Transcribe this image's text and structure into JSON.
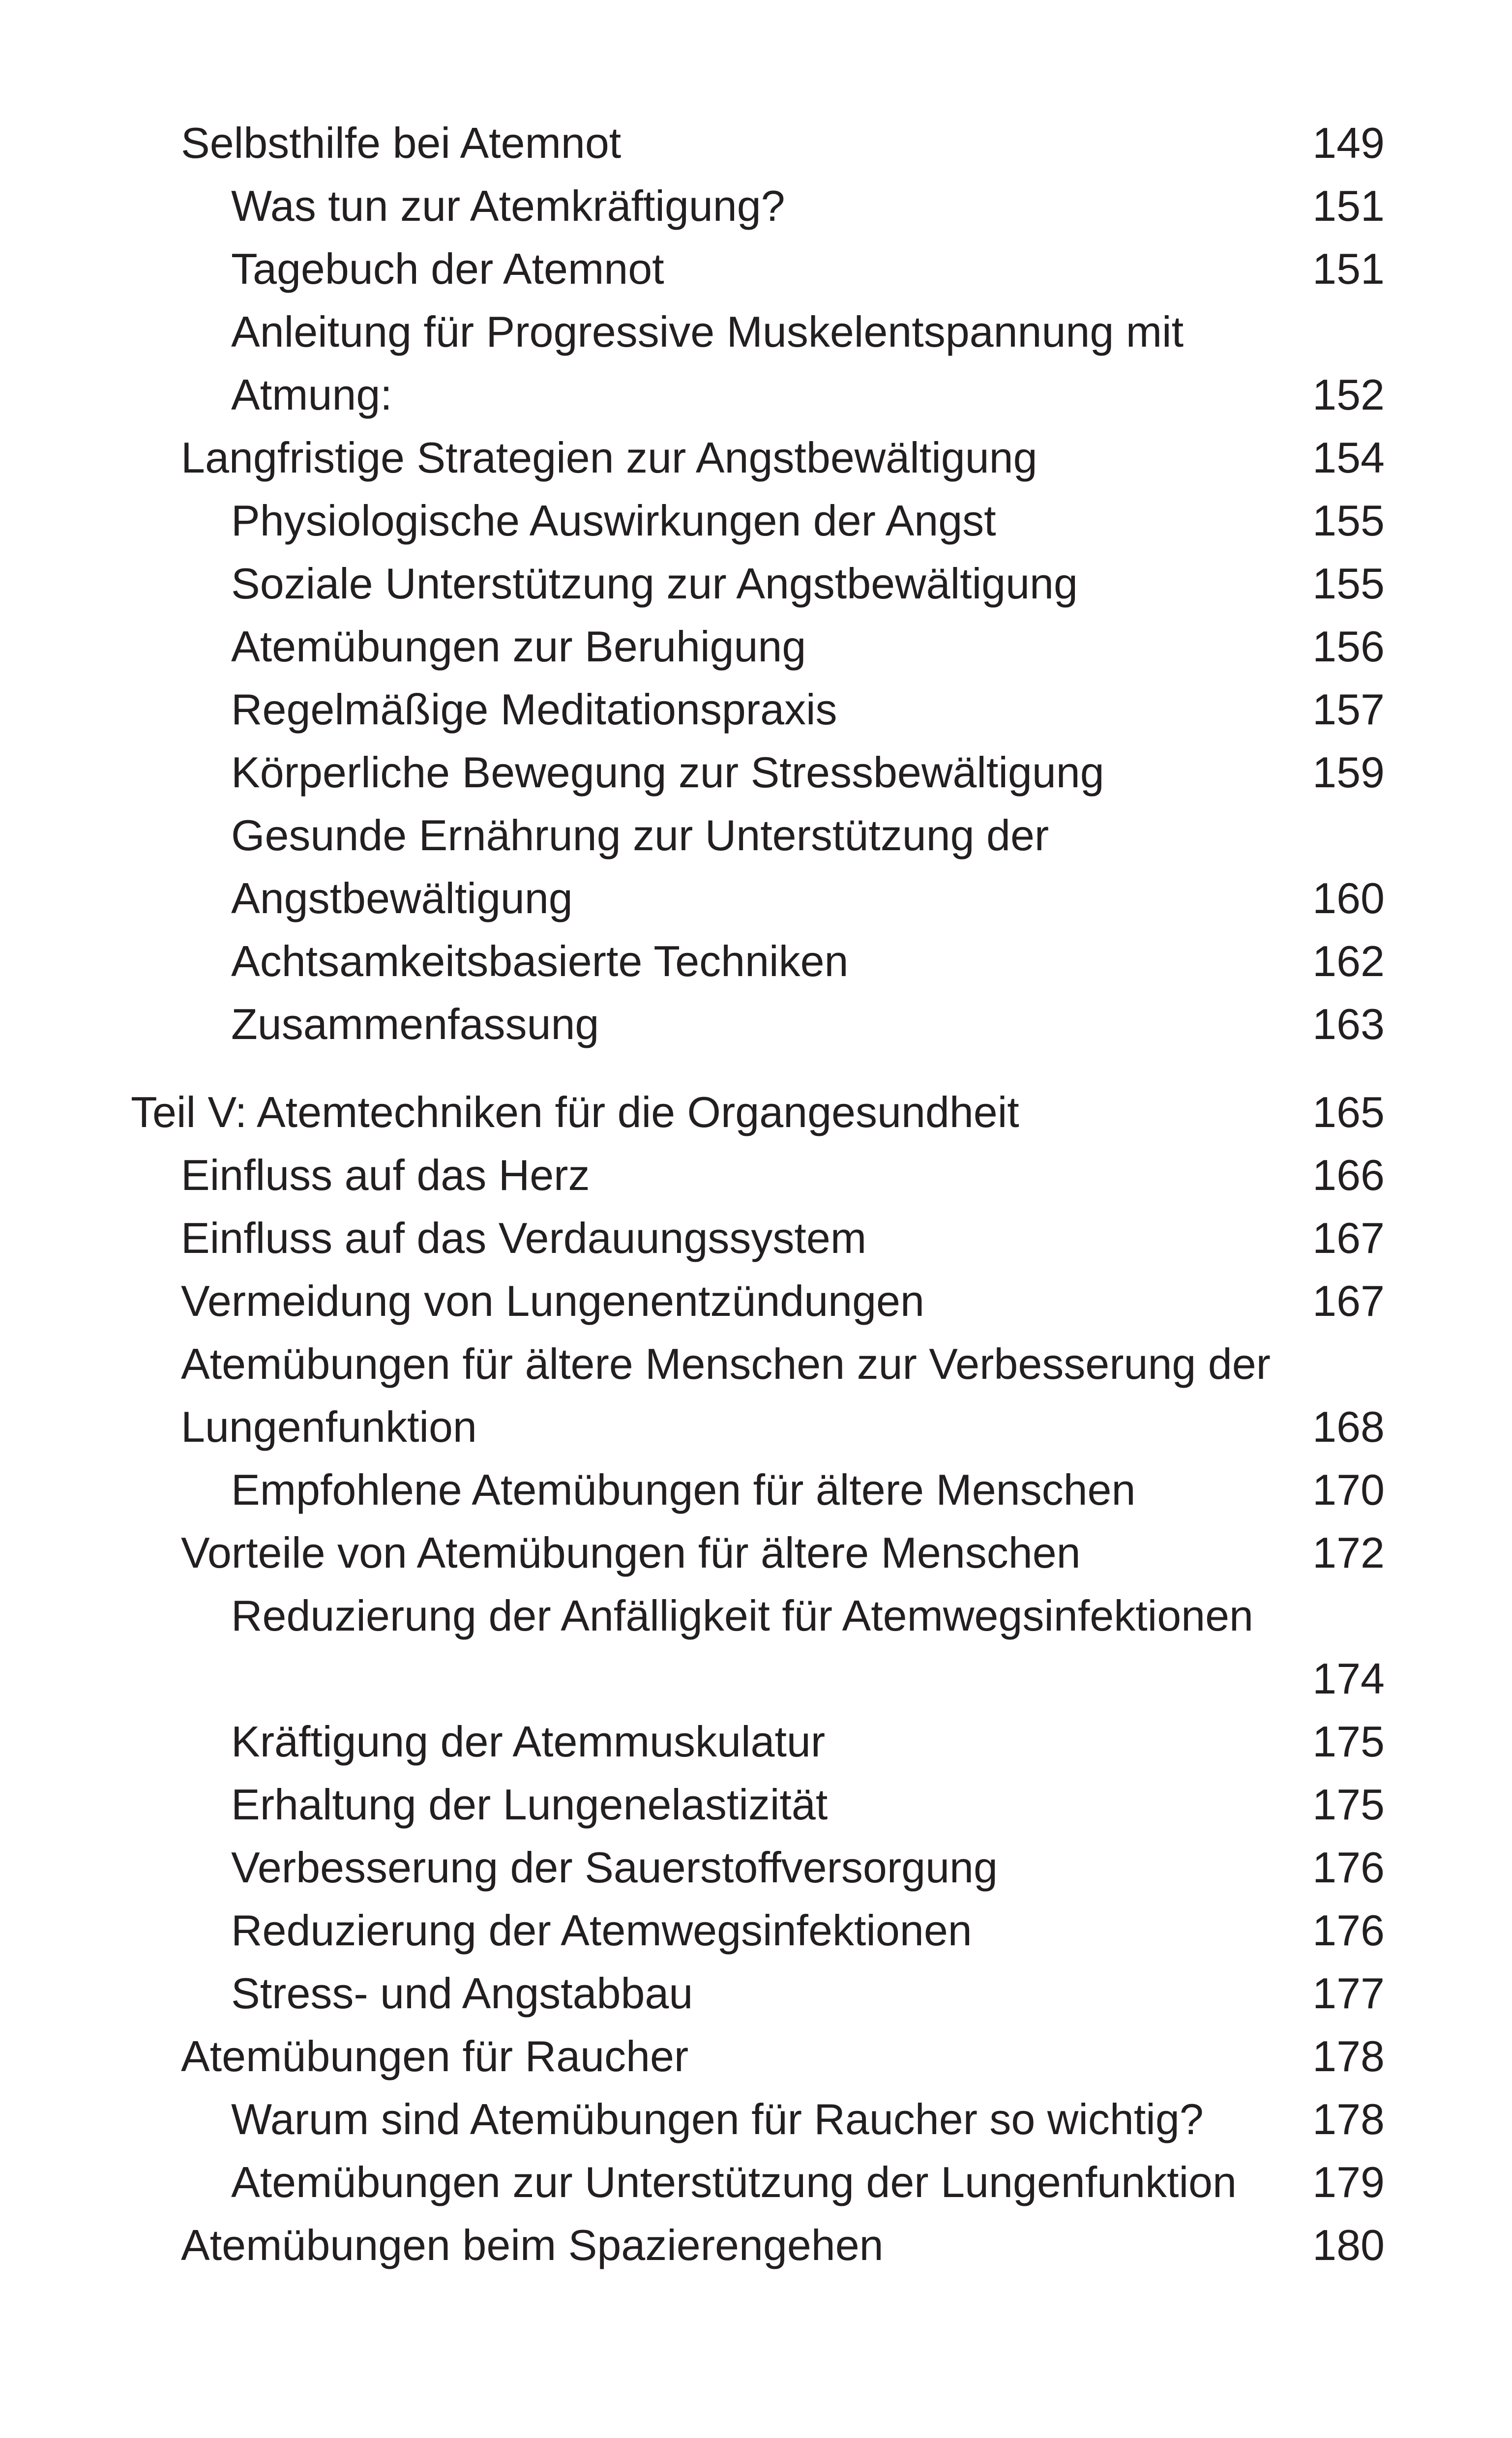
{
  "toc": [
    {
      "text": "Selbsthilfe bei Atemnot",
      "page": "149",
      "level": 1
    },
    {
      "text": "Was tun zur Atemkräftigung?",
      "page": "151",
      "level": 2
    },
    {
      "text": "Tagebuch der Atemnot",
      "page": "151",
      "level": 2
    },
    {
      "text": "Anleitung für Progressive Muskelentspannung mit",
      "page": "",
      "level": 2
    },
    {
      "text": "Atmung:",
      "page": "152",
      "level": 2
    },
    {
      "text": "Langfristige Strategien zur Angstbewältigung",
      "page": "154",
      "level": 1
    },
    {
      "text": "Physiologische Auswirkungen der Angst",
      "page": "155",
      "level": 2
    },
    {
      "text": "Soziale Unterstützung zur Angstbewältigung",
      "page": "155",
      "level": 2
    },
    {
      "text": "Atemübungen zur Beruhigung",
      "page": "156",
      "level": 2
    },
    {
      "text": "Regelmäßige Meditationspraxis",
      "page": "157",
      "level": 2
    },
    {
      "text": "Körperliche Bewegung zur Stressbewältigung",
      "page": "159",
      "level": 2
    },
    {
      "text": "Gesunde Ernährung zur Unterstützung der",
      "page": "",
      "level": 2
    },
    {
      "text": "Angstbewältigung",
      "page": "160",
      "level": 2
    },
    {
      "text": "Achtsamkeitsbasierte Techniken",
      "page": "162",
      "level": 2
    },
    {
      "text": "Zusammenfassung",
      "page": "163",
      "level": 2
    },
    {
      "text": "Teil V: Atemtechniken für die Organgesundheit",
      "page": "165",
      "level": 0
    },
    {
      "text": "Einfluss auf das Herz",
      "page": "166",
      "level": 1
    },
    {
      "text": "Einfluss auf das Verdauungssystem",
      "page": "167",
      "level": 1
    },
    {
      "text": "Vermeidung von Lungenentzündungen",
      "page": "167",
      "level": 1
    },
    {
      "text": "Atemübungen für ältere Menschen zur Verbesserung der",
      "page": "",
      "level": 1
    },
    {
      "text": "Lungenfunktion",
      "page": "168",
      "level": 1
    },
    {
      "text": "Empfohlene Atemübungen für ältere Menschen",
      "page": "170",
      "level": 2
    },
    {
      "text": "Vorteile von Atemübungen für ältere Menschen",
      "page": "172",
      "level": 1
    },
    {
      "text": "Reduzierung der Anfälligkeit für Atemwegsinfektionen",
      "page": "",
      "level": 2
    },
    {
      "text": "",
      "page": "174",
      "level": 2
    },
    {
      "text": "Kräftigung der Atemmuskulatur",
      "page": "175",
      "level": 2
    },
    {
      "text": "Erhaltung der Lungenelastizität",
      "page": "175",
      "level": 2
    },
    {
      "text": "Verbesserung der Sauerstoffversorgung",
      "page": "176",
      "level": 2
    },
    {
      "text": "Reduzierung der Atemwegsinfektionen",
      "page": "176",
      "level": 2
    },
    {
      "text": "Stress- und Angstabbau",
      "page": "177",
      "level": 2
    },
    {
      "text": "Atemübungen für Raucher",
      "page": "178",
      "level": 1
    },
    {
      "text": "Warum sind Atemübungen für Raucher so wichtig?",
      "page": "178",
      "level": 2
    },
    {
      "text": "Atemübungen zur Unterstützung der Lungenfunktion",
      "page": "179",
      "level": 2
    },
    {
      "text": "Atemübungen beim Spazierengehen",
      "page": "180",
      "level": 1
    }
  ]
}
